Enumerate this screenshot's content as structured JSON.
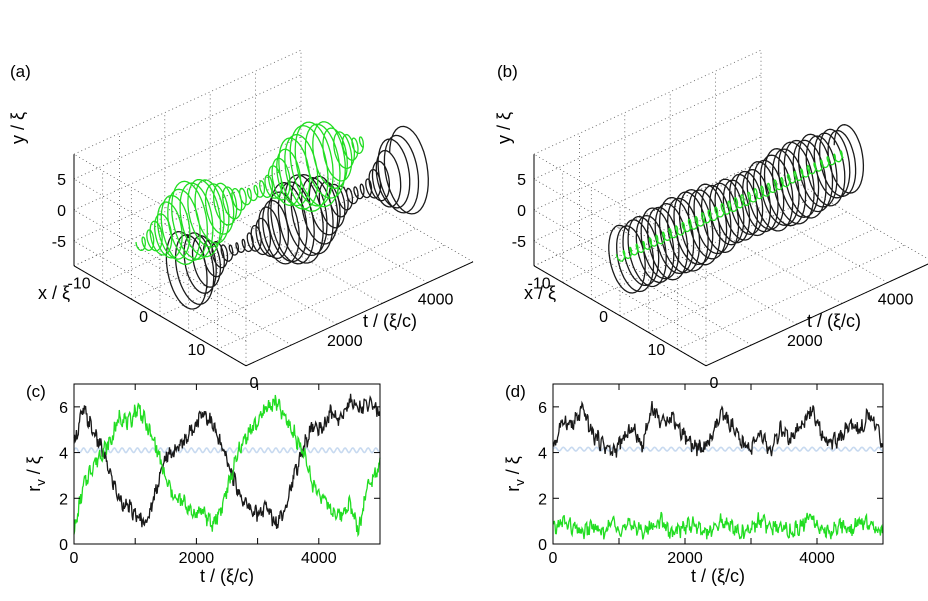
{
  "colors": {
    "black_series": "#1a1a1a",
    "green_series": "#22dd22",
    "reference_line": "#c8daf0"
  },
  "chart_data": [
    {
      "panel": "(a)",
      "type": "line3d",
      "x_axis": {
        "label": "t / (ξ/c)",
        "ticks": [
          0,
          2000,
          4000
        ],
        "range": [
          0,
          5000
        ]
      },
      "y_axis": {
        "label": "x / ξ",
        "ticks": [
          10,
          0,
          -10
        ],
        "range": [
          -15,
          15
        ]
      },
      "z_axis": {
        "label": "y / ξ",
        "ticks": [
          5,
          0,
          -5
        ],
        "range": [
          -9,
          9
        ]
      },
      "series": [
        {
          "color": "#1a1a1a",
          "center_x": 4,
          "center_y": 0,
          "radius_envelope": {
            "t": [
              0,
              1200,
              2600,
              3900,
              5000
            ],
            "r": [
              6.0,
              0.8,
              6.5,
              1.0,
              6.5
            ]
          }
        },
        {
          "color": "#22dd22",
          "center_x": -4,
          "center_y": 0,
          "radius_envelope": {
            "t": [
              0,
              1200,
              2600,
              3900,
              5000
            ],
            "r": [
              0.8,
              6.0,
              1.0,
              6.5,
              1.0
            ]
          }
        }
      ]
    },
    {
      "panel": "(b)",
      "type": "line3d",
      "x_axis": {
        "label": "t / (ξ/c)",
        "ticks": [
          0,
          2000,
          4000
        ],
        "range": [
          0,
          5000
        ]
      },
      "y_axis": {
        "label": "x / ξ",
        "ticks": [
          10,
          0,
          -10
        ],
        "range": [
          -15,
          15
        ]
      },
      "z_axis": {
        "label": "y / ξ",
        "ticks": [
          5,
          0,
          -5
        ],
        "range": [
          -9,
          9
        ]
      },
      "series": [
        {
          "color": "#1a1a1a",
          "center_x": 0.5,
          "center_y": 0,
          "radius_envelope": {
            "t": [
              0,
              1500,
              2600,
              3800,
              5000
            ],
            "r": [
              5.2,
              5.8,
              4.8,
              6.0,
              5.0
            ]
          }
        },
        {
          "color": "#22dd22",
          "center_x": -0.5,
          "center_y": 0,
          "radius_envelope": {
            "t": [
              0,
              2500,
              5000
            ],
            "r": [
              0.7,
              0.9,
              0.7
            ]
          }
        }
      ]
    },
    {
      "panel": "(c)",
      "type": "line",
      "xlabel": "t / (ξ/c)",
      "ylabel": "r_v / ξ",
      "xlim": [
        0,
        5000
      ],
      "ylim": [
        0,
        7
      ],
      "xticks": [
        0,
        2000,
        4000
      ],
      "yticks": [
        0,
        2,
        4,
        6
      ],
      "reference_line": {
        "y": 4.1,
        "amplitude": 0.1,
        "color": "#c8daf0"
      },
      "series": [
        {
          "color": "#1a1a1a",
          "x": [
            0,
            150,
            300,
            450,
            600,
            750,
            900,
            1050,
            1200,
            1350,
            1500,
            1650,
            1800,
            1950,
            2100,
            2250,
            2400,
            2550,
            2700,
            2850,
            3000,
            3150,
            3300,
            3450,
            3600,
            3750,
            3900,
            4050,
            4200,
            4350,
            4500,
            4650,
            4800,
            5000
          ],
          "y": [
            4.4,
            5.9,
            5.0,
            4.2,
            3.0,
            1.9,
            1.6,
            1.1,
            1.0,
            2.5,
            3.8,
            4.1,
            4.5,
            5.1,
            5.8,
            5.3,
            4.3,
            3.3,
            2.2,
            1.6,
            1.3,
            1.6,
            0.9,
            1.6,
            3.0,
            4.2,
            5.2,
            4.9,
            5.8,
            5.4,
            6.3,
            5.9,
            6.2,
            5.8
          ]
        },
        {
          "color": "#22dd22",
          "x": [
            0,
            150,
            300,
            450,
            600,
            750,
            900,
            1050,
            1200,
            1350,
            1500,
            1650,
            1800,
            1950,
            2100,
            2250,
            2400,
            2550,
            2700,
            2850,
            3000,
            3150,
            3300,
            3450,
            3600,
            3750,
            3900,
            4050,
            4200,
            4350,
            4500,
            4650,
            4800,
            5000
          ],
          "y": [
            0.5,
            2.5,
            3.4,
            4.0,
            4.5,
            5.6,
            5.3,
            6.0,
            5.1,
            4.2,
            2.8,
            2.0,
            1.8,
            1.3,
            1.5,
            0.8,
            1.5,
            2.8,
            4.1,
            4.9,
            5.3,
            6.0,
            6.2,
            5.5,
            4.8,
            4.0,
            2.6,
            2.1,
            1.5,
            1.2,
            1.8,
            0.6,
            2.6,
            3.5
          ]
        }
      ]
    },
    {
      "panel": "(d)",
      "type": "line",
      "xlabel": "t / (ξ/c)",
      "ylabel": "r_v / ξ",
      "xlim": [
        0,
        5000
      ],
      "ylim": [
        0,
        7
      ],
      "xticks": [
        0,
        2000,
        4000
      ],
      "yticks": [
        0,
        2,
        4,
        6
      ],
      "reference_line": {
        "y": 4.15,
        "amplitude": 0.08,
        "color": "#c8daf0"
      },
      "series": [
        {
          "color": "#1a1a1a",
          "x": [
            0,
            150,
            300,
            450,
            600,
            750,
            900,
            1050,
            1200,
            1350,
            1500,
            1650,
            1800,
            1950,
            2100,
            2250,
            2400,
            2550,
            2700,
            2850,
            3000,
            3150,
            3300,
            3450,
            3600,
            3750,
            3900,
            4050,
            4200,
            4350,
            4500,
            4650,
            4800,
            5000
          ],
          "y": [
            4.2,
            5.4,
            5.2,
            5.9,
            4.8,
            4.4,
            4.0,
            4.5,
            5.1,
            4.3,
            6.0,
            5.3,
            5.6,
            4.9,
            4.4,
            4.1,
            4.6,
            5.7,
            5.2,
            4.4,
            4.2,
            4.8,
            4.0,
            5.0,
            4.5,
            5.1,
            5.9,
            5.0,
            4.4,
            4.6,
            5.3,
            4.9,
            5.8,
            4.4
          ]
        },
        {
          "color": "#22dd22",
          "x": [
            0,
            150,
            300,
            450,
            600,
            750,
            900,
            1050,
            1200,
            1350,
            1500,
            1650,
            1800,
            1950,
            2100,
            2250,
            2400,
            2550,
            2700,
            2850,
            3000,
            3150,
            3300,
            3450,
            3600,
            3750,
            3900,
            4050,
            4200,
            4350,
            4500,
            4650,
            4800,
            5000
          ],
          "y": [
            0.6,
            1.0,
            0.7,
            0.5,
            0.8,
            0.4,
            1.0,
            0.6,
            0.9,
            0.5,
            0.8,
            1.0,
            0.4,
            0.7,
            0.9,
            0.6,
            0.5,
            1.0,
            0.8,
            0.4,
            0.7,
            1.1,
            0.6,
            0.9,
            0.5,
            0.8,
            1.2,
            0.7,
            0.5,
            0.9,
            0.6,
            1.0,
            0.8,
            0.5
          ]
        }
      ]
    }
  ]
}
